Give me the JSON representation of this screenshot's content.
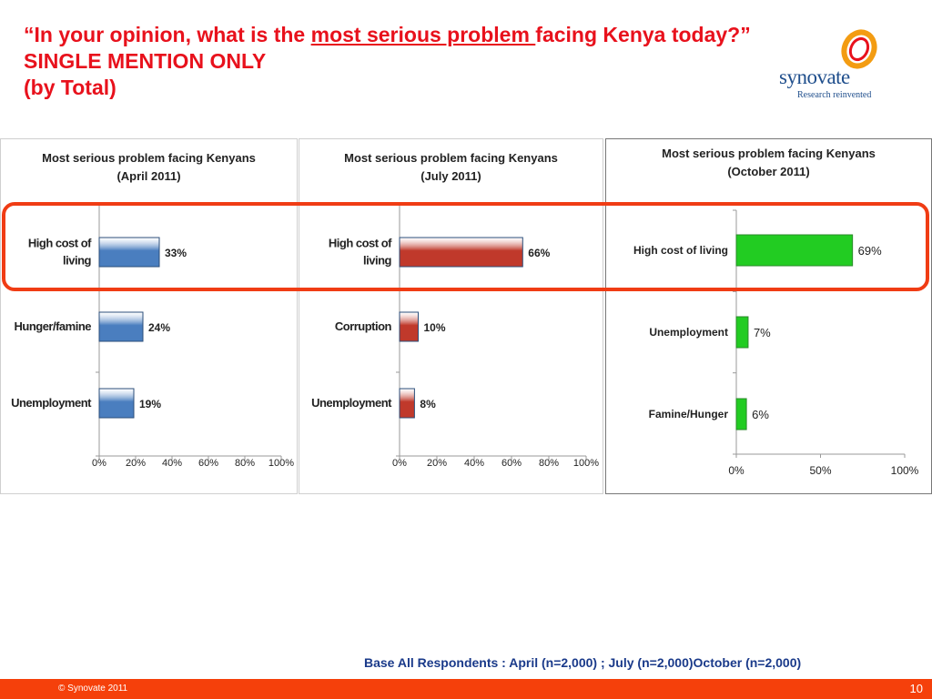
{
  "slide": {
    "title_part1": "“In your opinion, what is the ",
    "title_underlined": "most serious problem ",
    "title_part2": "facing Kenya today?” SINGLE MENTION ONLY",
    "title_line3": "(by Total)",
    "base_note": "Base All Respondents :  April (n=2,000) ; July (n=2,000)October (n=2,000)",
    "copyright": "© Synovate 2011",
    "page_number": "10",
    "logo": {
      "name": "synovate",
      "tagline": "Research reinvented"
    },
    "colors": {
      "title": "#e8111c",
      "highlight": "#f03c14",
      "footer": "#f5400b",
      "base_note": "#1a3a8a"
    }
  },
  "chart_data": [
    {
      "type": "bar",
      "orientation": "horizontal",
      "title": "Most serious problem facing Kenyans",
      "subtitle": "(April 2011)",
      "categories": [
        "High cost of living",
        "Hunger/famine",
        "Unemployment"
      ],
      "values": [
        33,
        24,
        19
      ],
      "value_labels": [
        "33%",
        "24%",
        "19%"
      ],
      "xlim": [
        0,
        100
      ],
      "ticks": [
        "0%",
        "20%",
        "40%",
        "60%",
        "80%",
        "100%"
      ],
      "bar_color": "#4a7ebf"
    },
    {
      "type": "bar",
      "orientation": "horizontal",
      "title": "Most serious problem facing Kenyans",
      "subtitle": "(July 2011)",
      "categories": [
        "High cost of living",
        "Corruption",
        "Unemployment"
      ],
      "values": [
        66,
        10,
        8
      ],
      "value_labels": [
        "66%",
        "10%",
        "8%"
      ],
      "xlim": [
        0,
        100
      ],
      "ticks": [
        "0%",
        "20%",
        "40%",
        "60%",
        "80%",
        "100%"
      ],
      "bar_color": "#c0392b"
    },
    {
      "type": "bar",
      "orientation": "horizontal",
      "title": "Most serious problem facing Kenyans",
      "subtitle": "(October 2011)",
      "categories": [
        "High cost of living",
        "Unemployment",
        "Famine/Hunger"
      ],
      "values": [
        69,
        7,
        6
      ],
      "value_labels": [
        "69%",
        "7%",
        "6%"
      ],
      "xlim": [
        0,
        100
      ],
      "ticks": [
        "0%",
        "50%",
        "100%"
      ],
      "bar_color": "#22cc22"
    }
  ]
}
